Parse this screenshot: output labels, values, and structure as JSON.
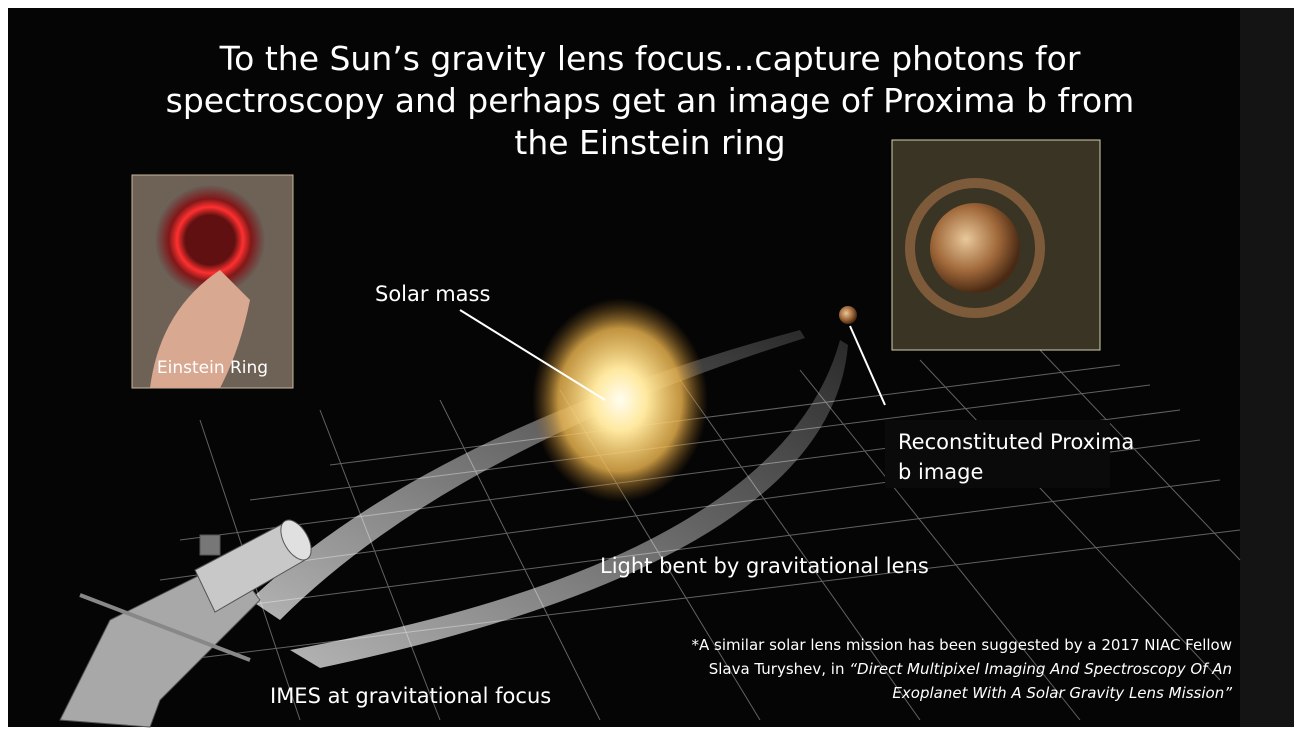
{
  "slide": {
    "title": "To the Sun’s gravity lens focus...capture photons for spectroscopy and perhaps get an image of Proxima b from the Einstein ring",
    "labels": {
      "einstein_ring": "Einstein Ring",
      "solar_mass": "Solar mass",
      "proxima": "Reconstituted Proxima b image",
      "light_bent": "Light bent by gravitational lens",
      "imes": "IMES at gravitational focus"
    },
    "footnote": {
      "text": "*A similar solar lens mission has been suggested by a 2017 NIAC Fellow Slava Turyshev, in",
      "citation": "“Direct Multipixel Imaging And Spectroscopy Of An Exoplanet With A Solar Gravity Lens Mission”"
    }
  }
}
